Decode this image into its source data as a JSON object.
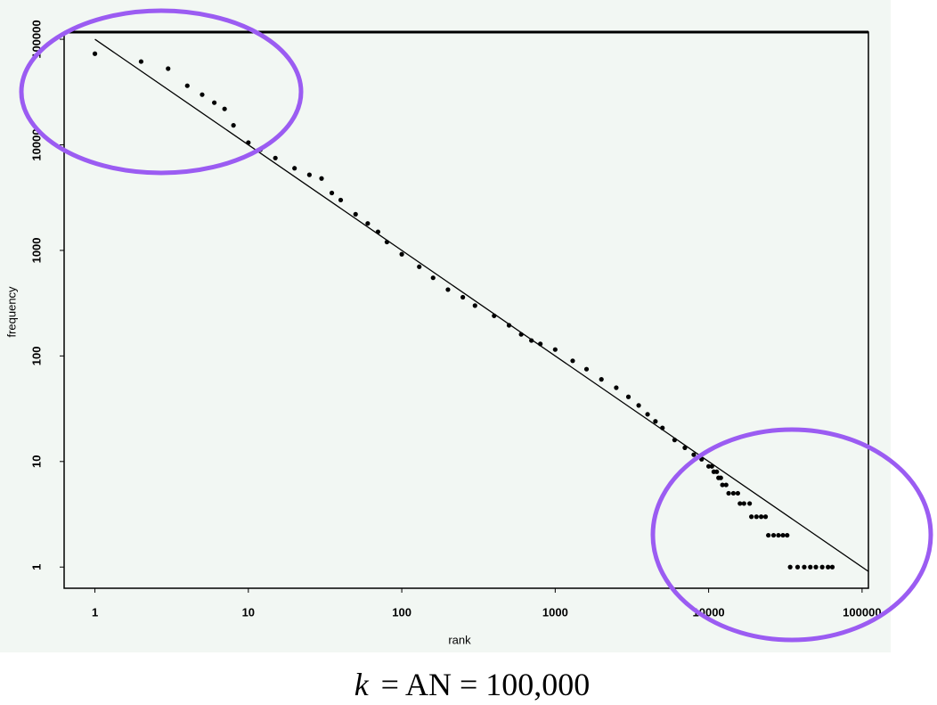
{
  "chart_data": {
    "type": "scatter",
    "x_label": "rank",
    "y_label": "frequency",
    "log_x": true,
    "log_y": true,
    "xlim": [
      0.63,
      110000
    ],
    "ylim": [
      0.63,
      117000
    ],
    "xticks": [
      1,
      10,
      100,
      1000,
      10000,
      100000
    ],
    "yticks": [
      1,
      10,
      100,
      1000,
      10000,
      100000
    ],
    "series": [
      {
        "mode": "markers",
        "color": "#000000",
        "x": [
          1,
          2,
          3,
          4,
          5,
          6,
          7,
          8,
          10,
          12,
          15,
          20,
          25,
          30,
          35,
          40,
          50,
          60,
          70,
          80,
          100,
          130,
          160,
          200,
          250,
          300,
          400,
          500,
          600,
          700,
          800,
          1000,
          1300,
          1600,
          2000,
          2500,
          3000,
          3500,
          4000,
          4500,
          5000,
          6000,
          7000,
          8000,
          9000,
          10000,
          10500,
          10800,
          11300,
          11600,
          12000,
          12300,
          13000,
          13500,
          14500,
          15500,
          16000,
          17000,
          18500,
          19000,
          20500,
          22000,
          23500,
          24500,
          26500,
          28500,
          30500,
          32500,
          34000,
          38000,
          42000,
          46000,
          50000,
          55000,
          60000,
          64000
        ],
        "values": [
          73000,
          61500,
          52700,
          36300,
          29900,
          25100,
          21900,
          15300,
          10500,
          9000,
          7500,
          6000,
          5200,
          4800,
          3500,
          3000,
          2200,
          1800,
          1500,
          1200,
          920,
          700,
          550,
          425,
          360,
          300,
          240,
          195,
          160,
          140,
          130,
          115,
          90,
          75,
          60,
          50,
          41,
          34,
          28,
          24,
          20.8,
          16,
          13.5,
          11.6,
          10.5,
          9,
          9,
          8,
          8,
          7,
          7,
          6,
          6,
          5,
          5,
          5,
          4,
          4,
          4,
          3,
          3,
          3,
          3,
          2,
          2,
          2,
          2,
          2,
          1,
          1,
          1,
          1,
          1,
          1,
          1,
          1
        ]
      },
      {
        "mode": "line",
        "color": "#000000",
        "x": [
          1,
          110000
        ],
        "values": [
          100000,
          0.909
        ]
      }
    ],
    "caption": {
      "variable": "k",
      "text": "= AN = 100,000"
    }
  }
}
